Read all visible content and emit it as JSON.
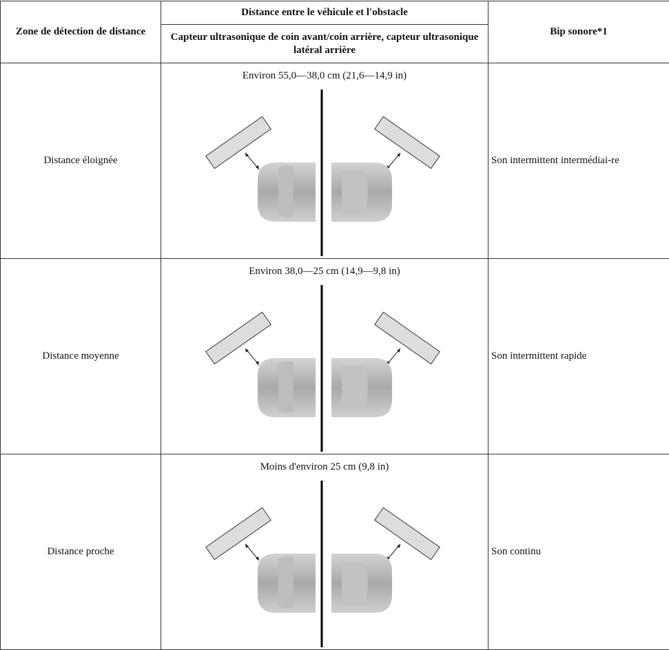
{
  "table": {
    "header": {
      "zone": "Zone de détection de distance",
      "distance": "Distance entre le véhicule et l'obstacle",
      "sensor": "Capteur ultrasonique de coin avant/coin arrière, capteur ultrasonique latéral arrière",
      "beep": "Bip sonore*1"
    },
    "rows": [
      {
        "zone": "Distance éloignée",
        "distance": "Environ 55,0—38,0 cm (21,6—14,9 in)",
        "beep": "Son intermittent intermédiai-re"
      },
      {
        "zone": "Distance moyenne",
        "distance": "Environ 38,0—25 cm (14,9—9,8 in)",
        "beep": "Son intermittent rapide"
      },
      {
        "zone": "Distance proche",
        "distance": "Moins d'environ 25 cm (9,8 in)",
        "beep": "Son continu"
      }
    ]
  }
}
